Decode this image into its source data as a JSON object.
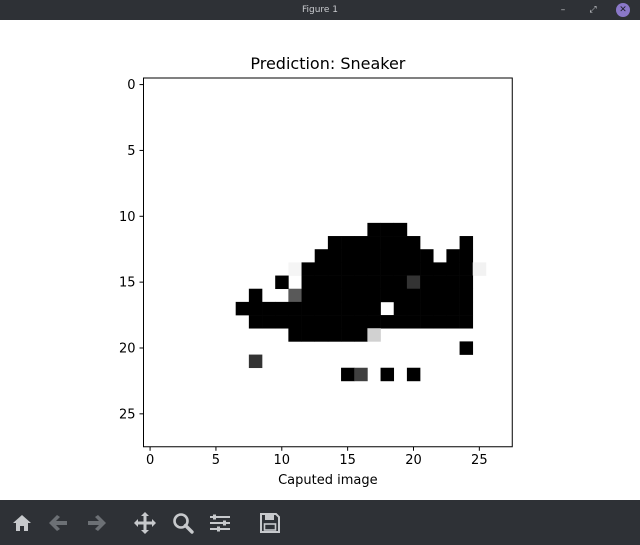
{
  "window": {
    "title": "Figure 1",
    "buttons": {
      "minimize": "–",
      "maximize": "⤢",
      "close": "✕"
    }
  },
  "chart_data": {
    "type": "heatmap",
    "title": "Prediction: Sneaker",
    "xlabel": "Caputed image",
    "ylabel": "",
    "xlim": [
      -0.5,
      27.5
    ],
    "ylim": [
      27.5,
      -0.5
    ],
    "xticks": [
      0,
      5,
      10,
      15,
      20,
      25
    ],
    "yticks": [
      0,
      5,
      10,
      15,
      20,
      25
    ],
    "grid": false,
    "colormap": "gray_r",
    "background": "#ffffff",
    "pixels": [
      {
        "x": 17,
        "y": 11,
        "v": 1
      },
      {
        "x": 18,
        "y": 11,
        "v": 1
      },
      {
        "x": 19,
        "y": 11,
        "v": 1
      },
      {
        "x": 14,
        "y": 12,
        "v": 1
      },
      {
        "x": 15,
        "y": 12,
        "v": 1
      },
      {
        "x": 16,
        "y": 12,
        "v": 1
      },
      {
        "x": 17,
        "y": 12,
        "v": 1
      },
      {
        "x": 18,
        "y": 12,
        "v": 1
      },
      {
        "x": 19,
        "y": 12,
        "v": 1
      },
      {
        "x": 20,
        "y": 12,
        "v": 1
      },
      {
        "x": 24,
        "y": 12,
        "v": 1
      },
      {
        "x": 13,
        "y": 13,
        "v": 1
      },
      {
        "x": 14,
        "y": 13,
        "v": 1
      },
      {
        "x": 15,
        "y": 13,
        "v": 1
      },
      {
        "x": 16,
        "y": 13,
        "v": 1
      },
      {
        "x": 17,
        "y": 13,
        "v": 1
      },
      {
        "x": 18,
        "y": 13,
        "v": 1
      },
      {
        "x": 19,
        "y": 13,
        "v": 1
      },
      {
        "x": 20,
        "y": 13,
        "v": 1
      },
      {
        "x": 21,
        "y": 13,
        "v": 1
      },
      {
        "x": 23,
        "y": 13,
        "v": 1
      },
      {
        "x": 24,
        "y": 13,
        "v": 1
      },
      {
        "x": 11,
        "y": 14,
        "v": 0.04
      },
      {
        "x": 12,
        "y": 14,
        "v": 1
      },
      {
        "x": 13,
        "y": 14,
        "v": 1
      },
      {
        "x": 14,
        "y": 14,
        "v": 1
      },
      {
        "x": 15,
        "y": 14,
        "v": 1
      },
      {
        "x": 16,
        "y": 14,
        "v": 1
      },
      {
        "x": 17,
        "y": 14,
        "v": 1
      },
      {
        "x": 18,
        "y": 14,
        "v": 1
      },
      {
        "x": 19,
        "y": 14,
        "v": 1
      },
      {
        "x": 20,
        "y": 14,
        "v": 1
      },
      {
        "x": 21,
        "y": 14,
        "v": 1
      },
      {
        "x": 22,
        "y": 14,
        "v": 1
      },
      {
        "x": 23,
        "y": 14,
        "v": 1
      },
      {
        "x": 24,
        "y": 14,
        "v": 1
      },
      {
        "x": 25,
        "y": 14,
        "v": 0.05
      },
      {
        "x": 10,
        "y": 15,
        "v": 1
      },
      {
        "x": 12,
        "y": 15,
        "v": 1
      },
      {
        "x": 13,
        "y": 15,
        "v": 1
      },
      {
        "x": 14,
        "y": 15,
        "v": 1
      },
      {
        "x": 15,
        "y": 15,
        "v": 1
      },
      {
        "x": 16,
        "y": 15,
        "v": 1
      },
      {
        "x": 17,
        "y": 15,
        "v": 1
      },
      {
        "x": 18,
        "y": 15,
        "v": 1
      },
      {
        "x": 19,
        "y": 15,
        "v": 1
      },
      {
        "x": 20,
        "y": 15,
        "v": 0.8
      },
      {
        "x": 21,
        "y": 15,
        "v": 1
      },
      {
        "x": 22,
        "y": 15,
        "v": 1
      },
      {
        "x": 23,
        "y": 15,
        "v": 1
      },
      {
        "x": 24,
        "y": 15,
        "v": 1
      },
      {
        "x": 8,
        "y": 16,
        "v": 1
      },
      {
        "x": 11,
        "y": 16,
        "v": 0.65
      },
      {
        "x": 12,
        "y": 16,
        "v": 1
      },
      {
        "x": 13,
        "y": 16,
        "v": 1
      },
      {
        "x": 14,
        "y": 16,
        "v": 1
      },
      {
        "x": 15,
        "y": 16,
        "v": 1
      },
      {
        "x": 16,
        "y": 16,
        "v": 1
      },
      {
        "x": 17,
        "y": 16,
        "v": 1
      },
      {
        "x": 18,
        "y": 16,
        "v": 1
      },
      {
        "x": 19,
        "y": 16,
        "v": 1
      },
      {
        "x": 20,
        "y": 16,
        "v": 1
      },
      {
        "x": 21,
        "y": 16,
        "v": 1
      },
      {
        "x": 22,
        "y": 16,
        "v": 1
      },
      {
        "x": 23,
        "y": 16,
        "v": 1
      },
      {
        "x": 24,
        "y": 16,
        "v": 1
      },
      {
        "x": 7,
        "y": 17,
        "v": 1
      },
      {
        "x": 8,
        "y": 17,
        "v": 1
      },
      {
        "x": 9,
        "y": 17,
        "v": 1
      },
      {
        "x": 10,
        "y": 17,
        "v": 1
      },
      {
        "x": 11,
        "y": 17,
        "v": 1
      },
      {
        "x": 12,
        "y": 17,
        "v": 1
      },
      {
        "x": 13,
        "y": 17,
        "v": 1
      },
      {
        "x": 14,
        "y": 17,
        "v": 1
      },
      {
        "x": 15,
        "y": 17,
        "v": 1
      },
      {
        "x": 16,
        "y": 17,
        "v": 1
      },
      {
        "x": 17,
        "y": 17,
        "v": 1
      },
      {
        "x": 19,
        "y": 17,
        "v": 1
      },
      {
        "x": 20,
        "y": 17,
        "v": 1
      },
      {
        "x": 21,
        "y": 17,
        "v": 1
      },
      {
        "x": 22,
        "y": 17,
        "v": 1
      },
      {
        "x": 23,
        "y": 17,
        "v": 1
      },
      {
        "x": 24,
        "y": 17,
        "v": 1
      },
      {
        "x": 8,
        "y": 18,
        "v": 1
      },
      {
        "x": 9,
        "y": 18,
        "v": 1
      },
      {
        "x": 10,
        "y": 18,
        "v": 1
      },
      {
        "x": 11,
        "y": 18,
        "v": 1
      },
      {
        "x": 12,
        "y": 18,
        "v": 1
      },
      {
        "x": 13,
        "y": 18,
        "v": 1
      },
      {
        "x": 14,
        "y": 18,
        "v": 1
      },
      {
        "x": 15,
        "y": 18,
        "v": 1
      },
      {
        "x": 16,
        "y": 18,
        "v": 1
      },
      {
        "x": 17,
        "y": 18,
        "v": 1
      },
      {
        "x": 18,
        "y": 18,
        "v": 1
      },
      {
        "x": 19,
        "y": 18,
        "v": 1
      },
      {
        "x": 20,
        "y": 18,
        "v": 1
      },
      {
        "x": 21,
        "y": 18,
        "v": 1
      },
      {
        "x": 22,
        "y": 18,
        "v": 1
      },
      {
        "x": 23,
        "y": 18,
        "v": 1
      },
      {
        "x": 24,
        "y": 18,
        "v": 1
      },
      {
        "x": 11,
        "y": 19,
        "v": 1
      },
      {
        "x": 12,
        "y": 19,
        "v": 1
      },
      {
        "x": 13,
        "y": 19,
        "v": 1
      },
      {
        "x": 14,
        "y": 19,
        "v": 1
      },
      {
        "x": 15,
        "y": 19,
        "v": 1
      },
      {
        "x": 16,
        "y": 19,
        "v": 1
      },
      {
        "x": 17,
        "y": 19,
        "v": 0.18
      },
      {
        "x": 24,
        "y": 20,
        "v": 1
      },
      {
        "x": 8,
        "y": 21,
        "v": 0.8
      },
      {
        "x": 15,
        "y": 22,
        "v": 1
      },
      {
        "x": 16,
        "y": 22,
        "v": 0.75
      },
      {
        "x": 18,
        "y": 22,
        "v": 1
      },
      {
        "x": 20,
        "y": 22,
        "v": 1
      }
    ]
  },
  "toolbar": {
    "buttons": [
      {
        "name": "home-icon",
        "label": "Home"
      },
      {
        "name": "back-icon",
        "label": "Back"
      },
      {
        "name": "forward-icon",
        "label": "Forward"
      },
      {
        "name": "pan-icon",
        "label": "Pan"
      },
      {
        "name": "zoom-icon",
        "label": "Zoom"
      },
      {
        "name": "configure-subplots-icon",
        "label": "Subplots"
      },
      {
        "name": "save-icon",
        "label": "Save"
      }
    ],
    "colors": {
      "background": "#2e3136",
      "icon": "#c7c9cc",
      "icon_disabled": "#6c7075"
    }
  }
}
